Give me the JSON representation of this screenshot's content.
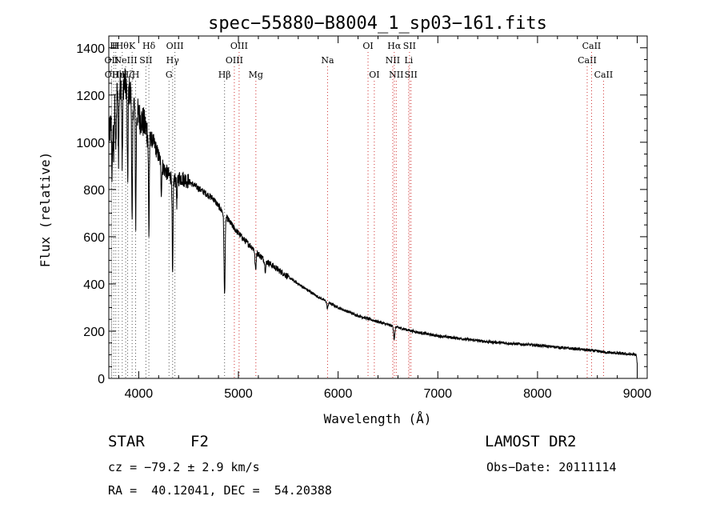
{
  "chart_data": {
    "type": "line",
    "title": "spec−55880−B8004_1_sp03−161.fits",
    "xlabel": "Wavelength (Å)",
    "ylabel": "Flux (relative)",
    "xlim": [
      3700,
      9100
    ],
    "ylim": [
      0,
      1450
    ],
    "xticks": [
      4000,
      5000,
      6000,
      7000,
      8000,
      9000
    ],
    "yticks": [
      0,
      200,
      400,
      600,
      800,
      1000,
      1200,
      1400
    ],
    "grid": false,
    "series": [
      {
        "continuum": [
          [
            3700,
            1020
          ],
          [
            3760,
            1180
          ],
          [
            3820,
            1250
          ],
          [
            3880,
            1250
          ],
          [
            3940,
            1180
          ],
          [
            4000,
            1110
          ],
          [
            4050,
            1080
          ],
          [
            4100,
            1030
          ],
          [
            4150,
            1000
          ],
          [
            4200,
            940
          ],
          [
            4250,
            890
          ],
          [
            4300,
            860
          ],
          [
            4360,
            840
          ],
          [
            4420,
            850
          ],
          [
            4480,
            840
          ],
          [
            4550,
            820
          ],
          [
            4650,
            790
          ],
          [
            4750,
            760
          ],
          [
            4850,
            700
          ],
          [
            4950,
            640
          ],
          [
            5050,
            590
          ],
          [
            5150,
            550
          ],
          [
            5250,
            505
          ],
          [
            5400,
            460
          ],
          [
            5600,
            400
          ],
          [
            5800,
            345
          ],
          [
            6000,
            300
          ],
          [
            6200,
            265
          ],
          [
            6400,
            240
          ],
          [
            6600,
            215
          ],
          [
            6800,
            195
          ],
          [
            7000,
            180
          ],
          [
            7500,
            155
          ],
          [
            8000,
            140
          ],
          [
            8500,
            120
          ],
          [
            8700,
            110
          ],
          [
            8990,
            100
          ],
          [
            9000,
            60
          ]
        ],
        "absorption_lines": [
          {
            "wavelength": 3734,
            "depth": 260
          },
          {
            "wavelength": 3750,
            "depth": 220
          },
          {
            "wavelength": 3771,
            "depth": 230
          },
          {
            "wavelength": 3798,
            "depth": 280
          },
          {
            "wavelength": 3835,
            "depth": 340
          },
          {
            "wavelength": 3889,
            "depth": 420
          },
          {
            "wavelength": 3934,
            "depth": 560
          },
          {
            "wavelength": 3970,
            "depth": 480
          },
          {
            "wavelength": 4102,
            "depth": 420
          },
          {
            "wavelength": 4227,
            "depth": 120
          },
          {
            "wavelength": 4340,
            "depth": 430
          },
          {
            "wavelength": 4383,
            "depth": 100
          },
          {
            "wavelength": 4861,
            "depth": 340
          },
          {
            "wavelength": 5172,
            "depth": 80
          },
          {
            "wavelength": 5270,
            "depth": 40
          },
          {
            "wavelength": 5893,
            "depth": 30
          },
          {
            "wavelength": 6563,
            "depth": 55
          }
        ]
      }
    ],
    "line_markers": [
      {
        "wavelength": 3727,
        "label": "OII",
        "row": 1,
        "color": "#555555"
      },
      {
        "wavelength": 3729,
        "label": "OII",
        "row": 2,
        "color": "#555555"
      },
      {
        "wavelength": 3750,
        "label": "H",
        "row": 0,
        "color": "#555555"
      },
      {
        "wavelength": 3770,
        "label": "H",
        "row": 0,
        "color": "#555555"
      },
      {
        "wavelength": 3797,
        "label": "Hη",
        "row": 2,
        "color": "#555555"
      },
      {
        "wavelength": 3835,
        "label": "Hθ",
        "row": 0,
        "color": "#555555"
      },
      {
        "wavelength": 3869,
        "label": "NeIII",
        "row": 1,
        "color": "#555555"
      },
      {
        "wavelength": 3889,
        "label": "Hζ",
        "row": 2,
        "color": "#555555"
      },
      {
        "wavelength": 3934,
        "label": "K",
        "row": 0,
        "color": "#555555"
      },
      {
        "wavelength": 3969,
        "label": "H",
        "row": 2,
        "color": "#555555"
      },
      {
        "wavelength": 4072,
        "label": "SII",
        "row": 1,
        "color": "#555555"
      },
      {
        "wavelength": 4102,
        "label": "Hδ",
        "row": 0,
        "color": "#555555"
      },
      {
        "wavelength": 4304,
        "label": "G",
        "row": 2,
        "color": "#555555"
      },
      {
        "wavelength": 4340,
        "label": "Hγ",
        "row": 1,
        "color": "#555555"
      },
      {
        "wavelength": 4363,
        "label": "OIII",
        "row": 0,
        "color": "#555555"
      },
      {
        "wavelength": 4861,
        "label": "Hβ",
        "row": 2,
        "color": "#555555"
      },
      {
        "wavelength": 4959,
        "label": "OIII",
        "row": 1,
        "color": "#d03030"
      },
      {
        "wavelength": 5007,
        "label": "OIII",
        "row": 0,
        "color": "#d03030"
      },
      {
        "wavelength": 5175,
        "label": "Mg",
        "row": 2,
        "color": "#d03030"
      },
      {
        "wavelength": 5894,
        "label": "Na",
        "row": 1,
        "color": "#d03030"
      },
      {
        "wavelength": 6300,
        "label": "OI",
        "row": 0,
        "color": "#d03030"
      },
      {
        "wavelength": 6363,
        "label": "OI",
        "row": 2,
        "color": "#d03030"
      },
      {
        "wavelength": 6548,
        "label": "NII",
        "row": 1,
        "color": "#d03030"
      },
      {
        "wavelength": 6563,
        "label": "Hα",
        "row": 0,
        "color": "#d03030"
      },
      {
        "wavelength": 6583,
        "label": "NII",
        "row": 2,
        "color": "#d03030"
      },
      {
        "wavelength": 6708,
        "label": "Li",
        "row": 1,
        "color": "#d03030"
      },
      {
        "wavelength": 6716,
        "label": "SII",
        "row": 0,
        "color": "#d03030"
      },
      {
        "wavelength": 6731,
        "label": "SII",
        "row": 2,
        "color": "#d03030"
      },
      {
        "wavelength": 8498,
        "label": "CaII",
        "row": 1,
        "color": "#d03030"
      },
      {
        "wavelength": 8542,
        "label": "CaII",
        "row": 0,
        "color": "#d03030"
      },
      {
        "wavelength": 8662,
        "label": "CaII",
        "row": 2,
        "color": "#d03030"
      }
    ]
  },
  "info": {
    "class_label": "STAR",
    "subclass": "F2",
    "survey": "LAMOST DR2",
    "velocity": "cz = −79.2 ± 2.9 km/s",
    "obs_date": "Obs−Date: 20111114",
    "coords": "RA =  40.12041, DEC =  54.20388"
  }
}
